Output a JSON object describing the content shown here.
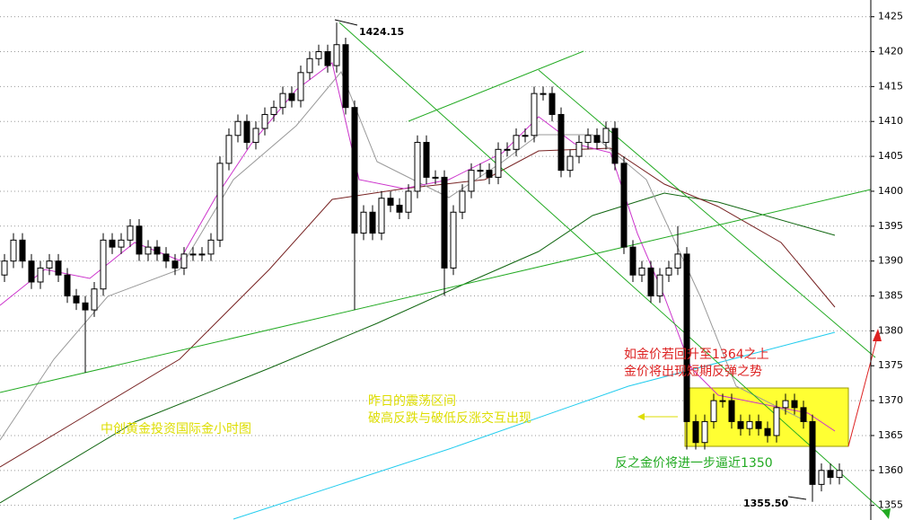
{
  "chart_data": {
    "type": "candlestick",
    "ylim": [
      1352.9,
      1427.4
    ],
    "yticks": [
      1355,
      1360,
      1365,
      1370,
      1375,
      1380,
      1385,
      1390,
      1395,
      1400,
      1405,
      1410,
      1415,
      1420,
      1425
    ],
    "grid": true,
    "open": [
      1388,
      1390,
      1393,
      1390,
      1387,
      1389,
      1390,
      1388,
      1385,
      1384,
      1383,
      1386,
      1393,
      1392,
      1393,
      1395,
      1391,
      1392,
      1391,
      1390,
      1389,
      1391,
      1391,
      1391,
      1393,
      1404,
      1408,
      1410,
      1407,
      1409,
      1411,
      1412,
      1414,
      1413,
      1417,
      1419,
      1420,
      1418,
      1421,
      1412,
      1394,
      1397,
      1394,
      1399,
      1398,
      1397,
      1400,
      1407,
      1402,
      1402,
      1389,
      1397,
      1400,
      1403,
      1403,
      1402,
      1406,
      1406,
      1408,
      1408,
      1414,
      1414,
      1411,
      1403,
      1405,
      1407,
      1408,
      1407,
      1409,
      1404,
      1392,
      1388,
      1389,
      1385,
      1388,
      1389,
      1391,
      1367,
      1364,
      1367,
      1370,
      1370,
      1367,
      1366,
      1367,
      1366,
      1365,
      1369,
      1370,
      1369,
      1367,
      1358,
      1360,
      1359
    ],
    "high": [
      1391,
      1394,
      1394,
      1391,
      1390,
      1391,
      1391,
      1389,
      1386,
      1385,
      1387,
      1394,
      1394,
      1394,
      1396,
      1396,
      1393,
      1393,
      1392,
      1391,
      1392,
      1392,
      1392,
      1394,
      1405,
      1409,
      1411,
      1411,
      1410,
      1412,
      1413,
      1415,
      1415,
      1418,
      1420,
      1421,
      1421,
      1424.15,
      1422,
      1413,
      1398,
      1398,
      1400,
      1400,
      1399,
      1401,
      1408,
      1408,
      1403,
      1403,
      1398,
      1401,
      1404,
      1404,
      1404,
      1407,
      1407,
      1409,
      1409,
      1415,
      1415,
      1415,
      1412,
      1406,
      1408,
      1409,
      1409,
      1410,
      1410,
      1405,
      1393,
      1390,
      1390,
      1389,
      1390,
      1395,
      1392,
      1368,
      1368,
      1371,
      1371,
      1371,
      1368,
      1368,
      1368,
      1367,
      1370,
      1371,
      1371,
      1370,
      1368,
      1361,
      1361,
      1361
    ],
    "low": [
      1387,
      1389,
      1389,
      1386,
      1386,
      1388,
      1387,
      1384,
      1383,
      1374,
      1382,
      1385,
      1391,
      1391,
      1392,
      1390,
      1390,
      1390,
      1389,
      1388,
      1388,
      1390,
      1390,
      1390,
      1392,
      1403,
      1407,
      1406,
      1406,
      1408,
      1410,
      1411,
      1412,
      1412,
      1416,
      1418,
      1417,
      1417,
      1411,
      1383,
      1393,
      1393,
      1393,
      1397,
      1396,
      1396,
      1399,
      1401,
      1401,
      1385,
      1388,
      1396,
      1399,
      1402,
      1401,
      1401,
      1405,
      1405,
      1407,
      1407,
      1413,
      1410,
      1402,
      1402,
      1404,
      1406,
      1406,
      1406,
      1403,
      1391,
      1387,
      1387,
      1384,
      1384,
      1387,
      1388,
      1363,
      1363,
      1363,
      1366,
      1369,
      1366,
      1365,
      1365,
      1365,
      1364,
      1364,
      1368,
      1368,
      1366,
      1355.5,
      1357,
      1358,
      1358
    ],
    "close": [
      1390,
      1393,
      1390,
      1387,
      1389,
      1390,
      1388,
      1385,
      1384,
      1383,
      1386,
      1393,
      1392,
      1393,
      1395,
      1391,
      1392,
      1391,
      1390,
      1389,
      1391,
      1391,
      1391,
      1393,
      1404,
      1408,
      1410,
      1407,
      1409,
      1411,
      1412,
      1414,
      1413,
      1417,
      1419,
      1420,
      1418,
      1421,
      1412,
      1394,
      1397,
      1394,
      1399,
      1398,
      1397,
      1400,
      1407,
      1402,
      1402,
      1389,
      1397,
      1400,
      1403,
      1403,
      1402,
      1406,
      1406,
      1408,
      1408,
      1414,
      1414,
      1411,
      1403,
      1405,
      1407,
      1408,
      1407,
      1409,
      1404,
      1392,
      1388,
      1389,
      1385,
      1388,
      1389,
      1391,
      1367,
      1364,
      1367,
      1370,
      1370,
      1367,
      1366,
      1367,
      1366,
      1365,
      1369,
      1370,
      1369,
      1367,
      1358,
      1360,
      1359,
      1360
    ],
    "annotations": [
      {
        "text": "1424.15"
      },
      {
        "text": "1355.50"
      },
      {
        "text": "如金价若回升至1364之上"
      },
      {
        "text": "金价将出现短期反弹之势"
      },
      {
        "text": "昨日的震荡区间"
      },
      {
        "text": "破高反跌与破低反涨交互出现"
      },
      {
        "text": "中创黄金投资国际金小时图"
      },
      {
        "text": "反之金价将进一步逼近1350"
      }
    ]
  }
}
